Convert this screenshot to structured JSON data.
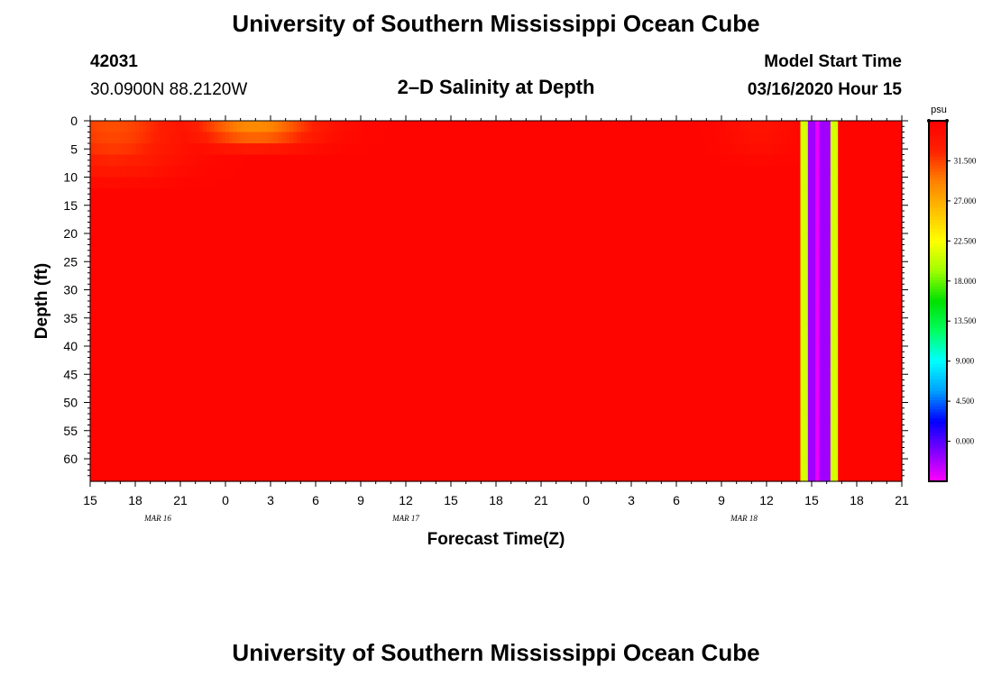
{
  "header": {
    "title_top": "University of Southern Mississippi Ocean Cube",
    "title_bottom": "University of Southern Mississippi Ocean Cube",
    "station_id": "42031",
    "station_coords": "30.0900N 88.2120W",
    "model_start_label": "Model Start Time",
    "model_start_value": "03/16/2020 Hour 15"
  },
  "chart_data": {
    "type": "heatmap",
    "title": "2–D Salinity at Depth",
    "xlabel": "Forecast Time(Z)",
    "ylabel": "Depth (ft)",
    "x_ticks": [
      "15",
      "18",
      "21",
      "0",
      "3",
      "6",
      "9",
      "12",
      "15",
      "18",
      "21",
      "0",
      "3",
      "6",
      "9",
      "12",
      "15",
      "18",
      "21"
    ],
    "x_range_hours": [
      0,
      54
    ],
    "date_labels": [
      {
        "text": "MAR  16",
        "hour": 4.5
      },
      {
        "text": "MAR  17",
        "hour": 21
      },
      {
        "text": "MAR  18",
        "hour": 43.5
      }
    ],
    "y_ticks": [
      "0",
      "5",
      "10",
      "15",
      "20",
      "25",
      "30",
      "35",
      "40",
      "45",
      "50",
      "55",
      "60"
    ],
    "y_range_ft": [
      0,
      64
    ],
    "y_inverted": true,
    "colorbar": {
      "unit": "psu",
      "labels": [
        "31.500",
        "27.000",
        "22.500",
        "18.000",
        "13.500",
        "9.000",
        "4.500",
        "0.000"
      ],
      "label_values": [
        31.5,
        27.0,
        22.5,
        18.0,
        13.5,
        9.0,
        4.5,
        0.0
      ],
      "range": [
        -4.5,
        36.0
      ],
      "colors": [
        "#ff00ff",
        "#7f00ff",
        "#0000ff",
        "#00a0ff",
        "#00ffff",
        "#00ff60",
        "#00e000",
        "#a0ff00",
        "#ffff00",
        "#ffc000",
        "#ff8000",
        "#ff2000",
        "#ff0000"
      ]
    },
    "field": {
      "background_psu": 35.5,
      "surface_low_salinity_patches": [
        {
          "center_hour": 1.5,
          "half_width_hours": 5,
          "depth_ft": 12,
          "min_psu": 31.0
        },
        {
          "center_hour": 11.0,
          "half_width_hours": 4.5,
          "depth_ft": 6,
          "min_psu": 28.5
        },
        {
          "center_hour": 44.5,
          "half_width_hours": 2.5,
          "depth_ft": 8,
          "min_psu": 34.0
        }
      ],
      "full_depth_bands": [
        {
          "start_hour": 47.2,
          "end_hour": 47.7,
          "psu": 21.0
        },
        {
          "start_hour": 47.7,
          "end_hour": 48.2,
          "psu": -2.0
        },
        {
          "start_hour": 48.2,
          "end_hour": 48.6,
          "psu": -4.0
        },
        {
          "start_hour": 48.6,
          "end_hour": 49.2,
          "psu": -2.0
        },
        {
          "start_hour": 49.2,
          "end_hour": 49.7,
          "psu": 21.0
        }
      ]
    }
  }
}
